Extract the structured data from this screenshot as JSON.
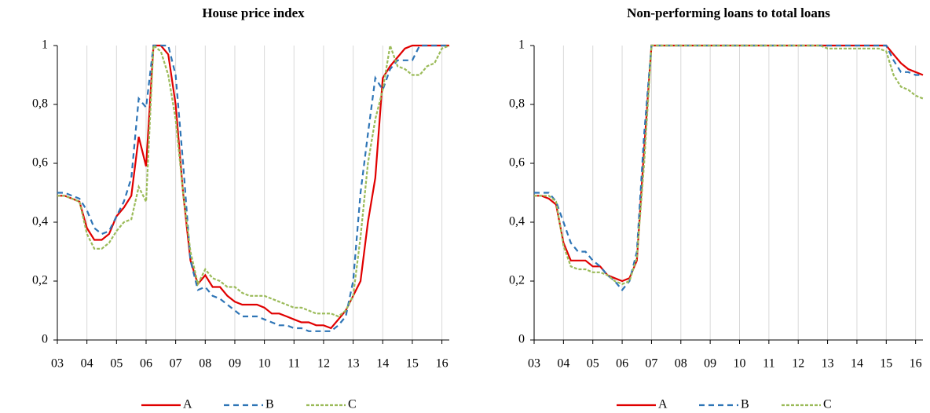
{
  "chart_data": [
    {
      "type": "line",
      "title": "House price index",
      "x": [
        3,
        3.25,
        3.5,
        3.75,
        4,
        4.25,
        4.5,
        4.75,
        5,
        5.25,
        5.5,
        5.75,
        6,
        6.25,
        6.5,
        6.75,
        7,
        7.25,
        7.5,
        7.75,
        8,
        8.25,
        8.5,
        8.75,
        9,
        9.25,
        9.5,
        9.75,
        10,
        10.25,
        10.5,
        10.75,
        11,
        11.25,
        11.5,
        11.75,
        12,
        12.25,
        12.5,
        12.75,
        13,
        13.25,
        13.5,
        13.75,
        14,
        14.25,
        14.5,
        14.75,
        15,
        15.25,
        15.5,
        15.75,
        16,
        16.25
      ],
      "series": [
        {
          "name": "A",
          "color": "#e00000",
          "dash": "none",
          "values": [
            0.49,
            0.49,
            0.48,
            0.47,
            0.38,
            0.34,
            0.34,
            0.36,
            0.42,
            0.45,
            0.49,
            0.69,
            0.59,
            1,
            1,
            0.97,
            0.8,
            0.5,
            0.27,
            0.19,
            0.22,
            0.18,
            0.18,
            0.15,
            0.13,
            0.12,
            0.12,
            0.12,
            0.11,
            0.09,
            0.09,
            0.08,
            0.07,
            0.06,
            0.06,
            0.05,
            0.05,
            0.04,
            0.07,
            0.1,
            0.15,
            0.2,
            0.4,
            0.55,
            0.89,
            0.93,
            0.96,
            0.99,
            1,
            1,
            1,
            1,
            1,
            1
          ]
        },
        {
          "name": "B",
          "color": "#2e75b6",
          "dash": "7,5",
          "values": [
            0.5,
            0.5,
            0.49,
            0.48,
            0.44,
            0.38,
            0.36,
            0.37,
            0.42,
            0.47,
            0.55,
            0.82,
            0.79,
            1,
            1,
            1,
            0.9,
            0.6,
            0.27,
            0.17,
            0.18,
            0.15,
            0.14,
            0.12,
            0.1,
            0.08,
            0.08,
            0.08,
            0.07,
            0.06,
            0.05,
            0.05,
            0.04,
            0.04,
            0.03,
            0.03,
            0.03,
            0.03,
            0.05,
            0.08,
            0.2,
            0.5,
            0.7,
            0.89,
            0.85,
            0.92,
            0.95,
            0.95,
            0.95,
            1,
            1,
            1,
            1,
            1
          ]
        },
        {
          "name": "C",
          "color": "#9bbb59",
          "dash": "4,2",
          "values": [
            0.49,
            0.49,
            0.48,
            0.47,
            0.36,
            0.31,
            0.31,
            0.33,
            0.37,
            0.4,
            0.41,
            0.52,
            0.47,
            1,
            0.98,
            0.9,
            0.75,
            0.5,
            0.3,
            0.19,
            0.24,
            0.21,
            0.2,
            0.18,
            0.18,
            0.16,
            0.15,
            0.15,
            0.15,
            0.14,
            0.13,
            0.12,
            0.11,
            0.11,
            0.1,
            0.09,
            0.09,
            0.09,
            0.08,
            0.1,
            0.15,
            0.35,
            0.6,
            0.75,
            0.85,
            1,
            0.93,
            0.92,
            0.9,
            0.9,
            0.93,
            0.94,
            0.99,
            1
          ]
        }
      ],
      "xlim": [
        3,
        16.25
      ],
      "xticks": [
        {
          "value": 3,
          "label": "03"
        },
        {
          "value": 4,
          "label": "04"
        },
        {
          "value": 5,
          "label": "05"
        },
        {
          "value": 6,
          "label": "06"
        },
        {
          "value": 7,
          "label": "07"
        },
        {
          "value": 8,
          "label": "08"
        },
        {
          "value": 9,
          "label": "09"
        },
        {
          "value": 10,
          "label": "10"
        },
        {
          "value": 11,
          "label": "11"
        },
        {
          "value": 12,
          "label": "12"
        },
        {
          "value": 13,
          "label": "13"
        },
        {
          "value": 14,
          "label": "14"
        },
        {
          "value": 15,
          "label": "15"
        },
        {
          "value": 16,
          "label": "16"
        }
      ],
      "ylim": [
        0,
        1
      ],
      "yticks": [
        0,
        {
          "value": 0.2,
          "label": "0,2"
        },
        {
          "value": 0.4,
          "label": "0,4"
        },
        {
          "value": 0.6,
          "label": "0,6"
        },
        {
          "value": 0.8,
          "label": "0,8"
        },
        1
      ],
      "grid": true,
      "legend": "bottom"
    },
    {
      "type": "line",
      "title": "Non-performing loans to total loans",
      "x": [
        3,
        3.25,
        3.5,
        3.75,
        4,
        4.25,
        4.5,
        4.75,
        5,
        5.25,
        5.5,
        5.75,
        6,
        6.25,
        6.5,
        6.75,
        7,
        7.25,
        7.5,
        7.75,
        8,
        8.25,
        8.5,
        8.75,
        9,
        9.25,
        9.5,
        9.75,
        10,
        10.25,
        10.5,
        10.75,
        11,
        11.25,
        11.5,
        11.75,
        12,
        12.25,
        12.5,
        12.75,
        13,
        13.25,
        13.5,
        13.75,
        14,
        14.25,
        14.5,
        14.75,
        15,
        15.25,
        15.5,
        15.75,
        16,
        16.25
      ],
      "series": [
        {
          "name": "A",
          "color": "#e00000",
          "dash": "none",
          "values": [
            0.49,
            0.49,
            0.48,
            0.46,
            0.33,
            0.27,
            0.27,
            0.27,
            0.25,
            0.25,
            0.22,
            0.21,
            0.2,
            0.21,
            0.27,
            0.65,
            1,
            1,
            1,
            1,
            1,
            1,
            1,
            1,
            1,
            1,
            1,
            1,
            1,
            1,
            1,
            1,
            1,
            1,
            1,
            1,
            1,
            1,
            1,
            1,
            1,
            1,
            1,
            1,
            1,
            1,
            1,
            1,
            1,
            0.97,
            0.94,
            0.92,
            0.91,
            0.9
          ]
        },
        {
          "name": "B",
          "color": "#2e75b6",
          "dash": "7,5",
          "values": [
            0.5,
            0.5,
            0.5,
            0.47,
            0.4,
            0.33,
            0.3,
            0.3,
            0.27,
            0.25,
            0.22,
            0.2,
            0.17,
            0.2,
            0.3,
            0.7,
            1,
            1,
            1,
            1,
            1,
            1,
            1,
            1,
            1,
            1,
            1,
            1,
            1,
            1,
            1,
            1,
            1,
            1,
            1,
            1,
            1,
            1,
            1,
            1,
            1,
            1,
            1,
            1,
            1,
            1,
            1,
            1,
            1,
            0.95,
            0.91,
            0.91,
            0.9,
            0.9
          ]
        },
        {
          "name": "C",
          "color": "#9bbb59",
          "dash": "4,2",
          "values": [
            0.49,
            0.49,
            0.49,
            0.47,
            0.32,
            0.25,
            0.24,
            0.24,
            0.23,
            0.23,
            0.22,
            0.2,
            0.19,
            0.2,
            0.28,
            0.6,
            1,
            1,
            1,
            1,
            1,
            1,
            1,
            1,
            1,
            1,
            1,
            1,
            1,
            1,
            1,
            1,
            1,
            1,
            1,
            1,
            1,
            1,
            1,
            1,
            0.99,
            0.99,
            0.99,
            0.99,
            0.99,
            0.99,
            0.99,
            0.99,
            0.98,
            0.9,
            0.86,
            0.85,
            0.83,
            0.82
          ]
        }
      ],
      "xlim": [
        3,
        16.25
      ],
      "xticks": [
        {
          "value": 3,
          "label": "03"
        },
        {
          "value": 4,
          "label": "04"
        },
        {
          "value": 5,
          "label": "05"
        },
        {
          "value": 6,
          "label": "06"
        },
        {
          "value": 7,
          "label": "07"
        },
        {
          "value": 8,
          "label": "08"
        },
        {
          "value": 9,
          "label": "09"
        },
        {
          "value": 10,
          "label": "10"
        },
        {
          "value": 11,
          "label": "11"
        },
        {
          "value": 12,
          "label": "12"
        },
        {
          "value": 13,
          "label": "13"
        },
        {
          "value": 14,
          "label": "14"
        },
        {
          "value": 15,
          "label": "15"
        },
        {
          "value": 16,
          "label": "16"
        }
      ],
      "ylim": [
        0,
        1
      ],
      "yticks": [
        0,
        {
          "value": 0.2,
          "label": "0,2"
        },
        {
          "value": 0.4,
          "label": "0,4"
        },
        {
          "value": 0.6,
          "label": "0,6"
        },
        {
          "value": 0.8,
          "label": "0,8"
        },
        1
      ],
      "grid": true,
      "legend": "bottom"
    }
  ]
}
